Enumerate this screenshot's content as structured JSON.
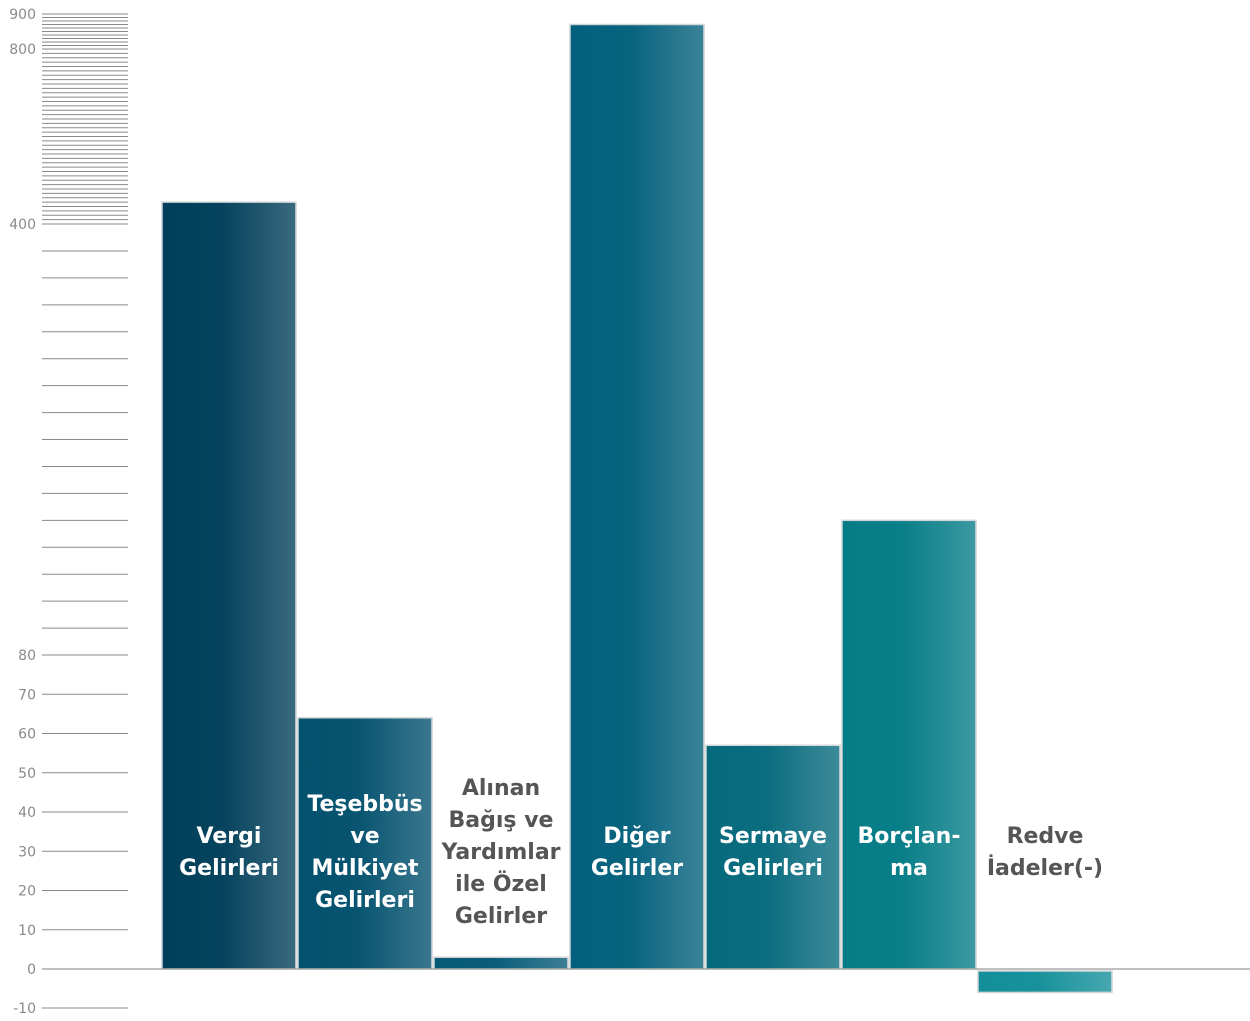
{
  "chart_data": {
    "type": "bar",
    "title": "",
    "xlabel": "",
    "ylabel": "",
    "scale": "segmented",
    "y_tick_labels": [
      "900",
      "800",
      "400",
      "80",
      "70",
      "60",
      "50",
      "40",
      "30",
      "20",
      "10",
      "0",
      "-10"
    ],
    "categories": [
      "Vergi Gelirleri",
      "Teşebbüs ve Mülkiyet Gelirleri",
      "Alınan Bağış ve Yardımlar ile Özel Gelirler",
      "Diğer Gelirler",
      "Sermaye Gelirleri",
      "Borçlan-ma",
      "Redve İadeler(-)"
    ],
    "label_lines": [
      [
        "Vergi",
        "Gelirleri"
      ],
      [
        "Teşebbüs",
        "ve",
        "Mülkiyet",
        "Gelirleri"
      ],
      [
        "Alınan",
        "Bağış ve",
        "Yardımlar",
        "ile Özel",
        "Gelirler"
      ],
      [
        "Diğer",
        "Gelirler"
      ],
      [
        "Sermaye",
        "Gelirleri"
      ],
      [
        "Borçlan-",
        "ma"
      ],
      [
        "Redve",
        "İadeler(-)"
      ]
    ],
    "values": [
      450,
      64,
      3,
      870,
      57,
      180,
      -6
    ],
    "colors": [
      "#013f5a",
      "#03516e",
      "#055a78",
      "#03607c",
      "#066a7d",
      "#047c86",
      "#138f99"
    ],
    "label_colors": [
      "#ffffff",
      "#ffffff",
      "#555555",
      "#ffffff",
      "#ffffff",
      "#ffffff",
      "#555555"
    ]
  }
}
